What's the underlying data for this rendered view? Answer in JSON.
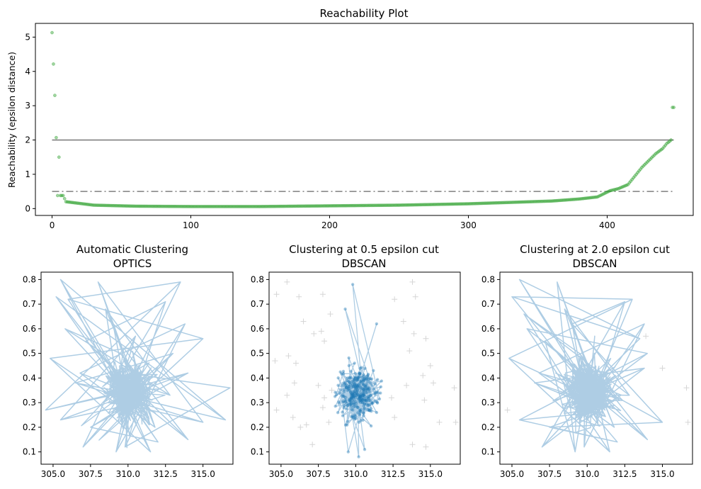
{
  "chart_data": [
    {
      "type": "scatter",
      "title": "Reachability Plot",
      "xlabel": "",
      "ylabel": "Reachability (epsilon distance)",
      "xlim": [
        -12,
        462
      ],
      "ylim": [
        -0.2,
        5.4
      ],
      "xticks": [
        0,
        100,
        200,
        300,
        400
      ],
      "yticks": [
        0,
        1,
        2,
        3,
        4,
        5
      ],
      "grid": false,
      "color": "#2ca02c",
      "n_points": 449,
      "points": [
        {
          "x": 0,
          "y": 5.13
        },
        {
          "x": 2,
          "y": 3.3
        },
        {
          "x": 3,
          "y": 2.07
        },
        {
          "x": 5,
          "y": 1.5
        },
        {
          "x": 6,
          "y": 0.38
        },
        {
          "x": 8,
          "y": 0.38
        },
        {
          "x": 10,
          "y": 0.2
        },
        {
          "x": 30,
          "y": 0.1
        },
        {
          "x": 60,
          "y": 0.07
        },
        {
          "x": 100,
          "y": 0.06
        },
        {
          "x": 150,
          "y": 0.06
        },
        {
          "x": 200,
          "y": 0.08
        },
        {
          "x": 250,
          "y": 0.1
        },
        {
          "x": 300,
          "y": 0.14
        },
        {
          "x": 330,
          "y": 0.18
        },
        {
          "x": 360,
          "y": 0.22
        },
        {
          "x": 380,
          "y": 0.28
        },
        {
          "x": 393,
          "y": 0.34
        },
        {
          "x": 402,
          "y": 0.52
        },
        {
          "x": 408,
          "y": 0.58
        },
        {
          "x": 415,
          "y": 0.7
        },
        {
          "x": 420,
          "y": 0.95
        },
        {
          "x": 425,
          "y": 1.2
        },
        {
          "x": 430,
          "y": 1.4
        },
        {
          "x": 435,
          "y": 1.6
        },
        {
          "x": 440,
          "y": 1.75
        },
        {
          "x": 443,
          "y": 1.9
        },
        {
          "x": 445,
          "y": 1.96
        },
        {
          "x": 446,
          "y": 2.0
        },
        {
          "x": 447,
          "y": 2.95
        }
      ],
      "hlines": [
        {
          "y": 2.0,
          "style": "solid",
          "color": "#000000",
          "alpha": 0.5
        },
        {
          "y": 0.5,
          "style": "dashdot",
          "color": "#000000",
          "alpha": 0.5
        }
      ]
    },
    {
      "type": "line",
      "title": "Automatic Clustering\nOPTICS",
      "title_lines": [
        "Automatic Clustering",
        "OPTICS"
      ],
      "xlim": [
        304.2,
        317.0
      ],
      "ylim": [
        0.05,
        0.83
      ],
      "xticks": [
        305.0,
        307.5,
        310.0,
        312.5,
        315.0
      ],
      "xtick_labels": [
        "305.0",
        "307.5",
        "310.0",
        "312.5",
        "315.0"
      ],
      "yticks": [
        0.1,
        0.2,
        0.3,
        0.4,
        0.5,
        0.6,
        0.7,
        0.8
      ],
      "ytick_labels": [
        "0.1",
        "0.2",
        "0.3",
        "0.4",
        "0.5",
        "0.6",
        "0.7",
        "0.8"
      ],
      "series_color": "#aecde4",
      "points": [
        [
          310.0,
          0.35
        ],
        [
          304.5,
          0.27
        ],
        [
          313.5,
          0.79
        ],
        [
          306.0,
          0.72
        ],
        [
          315.0,
          0.56
        ],
        [
          304.8,
          0.48
        ],
        [
          311.5,
          0.1
        ],
        [
          305.5,
          0.8
        ],
        [
          309.0,
          0.62
        ],
        [
          316.5,
          0.23
        ],
        [
          305.2,
          0.73
        ],
        [
          312.0,
          0.14
        ],
        [
          307.5,
          0.2
        ],
        [
          314.0,
          0.42
        ],
        [
          305.5,
          0.23
        ],
        [
          310.5,
          0.57
        ],
        [
          307.0,
          0.12
        ],
        [
          313.0,
          0.5
        ],
        [
          306.5,
          0.38
        ],
        [
          315.0,
          0.22
        ],
        [
          308.0,
          0.79
        ],
        [
          311.0,
          0.29
        ],
        [
          309.2,
          0.1
        ],
        [
          312.5,
          0.71
        ],
        [
          307.2,
          0.55
        ],
        [
          314.0,
          0.15
        ],
        [
          309.5,
          0.5
        ],
        [
          305.8,
          0.6
        ],
        [
          312.8,
          0.33
        ],
        [
          308.5,
          0.68
        ],
        [
          311.8,
          0.2
        ],
        [
          306.8,
          0.42
        ],
        [
          313.8,
          0.62
        ],
        [
          309.8,
          0.12
        ],
        [
          316.8,
          0.36
        ]
      ],
      "cluster_center": [
        310.1,
        0.34
      ],
      "cluster_spread": [
        0.75,
        0.055
      ]
    },
    {
      "type": "scatter",
      "title": "Clustering at 0.5 epsilon cut\nDBSCAN",
      "title_lines": [
        "Clustering at 0.5 epsilon cut",
        "DBSCAN"
      ],
      "xlim": [
        304.2,
        317.0
      ],
      "ylim": [
        0.05,
        0.83
      ],
      "xticks": [
        305.0,
        307.5,
        310.0,
        312.5,
        315.0
      ],
      "xtick_labels": [
        "305.0",
        "307.5",
        "310.0",
        "312.5",
        "315.0"
      ],
      "yticks": [
        0.1,
        0.2,
        0.3,
        0.4,
        0.5,
        0.6,
        0.7,
        0.8
      ],
      "ytick_labels": [
        "0.1",
        "0.2",
        "0.3",
        "0.4",
        "0.5",
        "0.6",
        "0.7",
        "0.8"
      ],
      "cluster_color": "#1f77b4",
      "line_color": "#aecde4",
      "noise_color": "#bbbbbb",
      "cluster_center": [
        310.1,
        0.34
      ],
      "cluster_spread": [
        0.6,
        0.05
      ],
      "cluster_outliers": [
        [
          309.8,
          0.78
        ],
        [
          311.4,
          0.62
        ],
        [
          309.3,
          0.68
        ],
        [
          309.5,
          0.1
        ],
        [
          310.2,
          0.08
        ],
        [
          310.6,
          0.11
        ]
      ],
      "noise_points": [
        [
          305.4,
          0.79
        ],
        [
          304.7,
          0.74
        ],
        [
          306.2,
          0.73
        ],
        [
          307.8,
          0.74
        ],
        [
          305.5,
          0.49
        ],
        [
          304.6,
          0.47
        ],
        [
          306.0,
          0.46
        ],
        [
          306.5,
          0.63
        ],
        [
          307.2,
          0.58
        ],
        [
          307.7,
          0.59
        ],
        [
          308.3,
          0.66
        ],
        [
          307.9,
          0.55
        ],
        [
          305.9,
          0.38
        ],
        [
          305.4,
          0.33
        ],
        [
          304.7,
          0.27
        ],
        [
          307.5,
          0.37
        ],
        [
          307.9,
          0.32
        ],
        [
          308.4,
          0.35
        ],
        [
          307.8,
          0.28
        ],
        [
          308.2,
          0.22
        ],
        [
          305.8,
          0.24
        ],
        [
          306.3,
          0.2
        ],
        [
          307.1,
          0.13
        ],
        [
          306.7,
          0.21
        ],
        [
          313.8,
          0.79
        ],
        [
          314.0,
          0.73
        ],
        [
          312.6,
          0.72
        ],
        [
          313.2,
          0.63
        ],
        [
          313.9,
          0.58
        ],
        [
          314.7,
          0.56
        ],
        [
          313.6,
          0.51
        ],
        [
          315.0,
          0.45
        ],
        [
          314.5,
          0.41
        ],
        [
          313.4,
          0.37
        ],
        [
          315.2,
          0.38
        ],
        [
          314.6,
          0.31
        ],
        [
          316.6,
          0.36
        ],
        [
          315.6,
          0.22
        ],
        [
          316.7,
          0.22
        ],
        [
          313.8,
          0.13
        ],
        [
          314.7,
          0.12
        ],
        [
          312.6,
          0.24
        ],
        [
          312.4,
          0.32
        ]
      ]
    },
    {
      "type": "line",
      "title": "Clustering at 2.0 epsilon cut\nDBSCAN",
      "title_lines": [
        "Clustering at 2.0 epsilon cut",
        "DBSCAN"
      ],
      "xlim": [
        304.2,
        317.0
      ],
      "ylim": [
        0.05,
        0.83
      ],
      "xticks": [
        305.0,
        307.5,
        310.0,
        312.5,
        315.0
      ],
      "xtick_labels": [
        "305.0",
        "307.5",
        "310.0",
        "312.5",
        "315.0"
      ],
      "yticks": [
        0.1,
        0.2,
        0.3,
        0.4,
        0.5,
        0.6,
        0.7,
        0.8
      ],
      "ytick_labels": [
        "0.1",
        "0.2",
        "0.3",
        "0.4",
        "0.5",
        "0.6",
        "0.7",
        "0.8"
      ],
      "series_color": "#aecde4",
      "noise_color": "#bbbbbb",
      "points": [
        [
          310.0,
          0.35
        ],
        [
          305.5,
          0.8
        ],
        [
          313.5,
          0.56
        ],
        [
          305.0,
          0.73
        ],
        [
          313.0,
          0.72
        ],
        [
          304.8,
          0.48
        ],
        [
          311.5,
          0.1
        ],
        [
          306.0,
          0.6
        ],
        [
          314.0,
          0.5
        ],
        [
          305.5,
          0.23
        ],
        [
          312.0,
          0.14
        ],
        [
          307.5,
          0.2
        ],
        [
          315.0,
          0.22
        ],
        [
          309.0,
          0.62
        ],
        [
          312.5,
          0.71
        ],
        [
          307.0,
          0.12
        ],
        [
          313.8,
          0.44
        ],
        [
          306.5,
          0.38
        ],
        [
          311.0,
          0.29
        ],
        [
          308.0,
          0.79
        ],
        [
          309.2,
          0.1
        ],
        [
          307.2,
          0.55
        ],
        [
          314.0,
          0.15
        ],
        [
          309.5,
          0.5
        ],
        [
          305.8,
          0.66
        ],
        [
          312.8,
          0.33
        ],
        [
          308.5,
          0.68
        ],
        [
          311.8,
          0.2
        ],
        [
          306.8,
          0.42
        ],
        [
          313.8,
          0.62
        ],
        [
          309.8,
          0.12
        ],
        [
          310.5,
          0.57
        ]
      ],
      "noise_points": [
        [
          304.7,
          0.27
        ],
        [
          316.6,
          0.36
        ],
        [
          316.7,
          0.22
        ],
        [
          315.0,
          0.44
        ],
        [
          313.9,
          0.57
        ]
      ],
      "cluster_center": [
        310.1,
        0.34
      ],
      "cluster_spread": [
        0.75,
        0.055
      ]
    }
  ]
}
